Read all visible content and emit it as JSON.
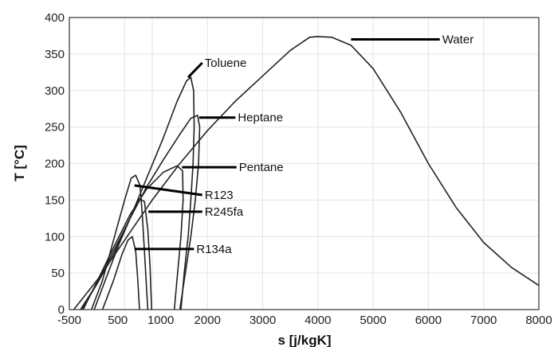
{
  "chart_data": {
    "type": "line",
    "title": "",
    "xlabel": "s [j/kgK]",
    "ylabel": "T [°C]",
    "xlim": [
      -500,
      8000
    ],
    "ylim": [
      0,
      400
    ],
    "xticks": [
      "-500",
      "500",
      "1000",
      "2000",
      "3000",
      "4000",
      "5000",
      "6000",
      "7000",
      "8000"
    ],
    "yticks": [
      "0",
      "50",
      "100",
      "150",
      "200",
      "250",
      "300",
      "350",
      "400"
    ],
    "grid": true,
    "series": [
      {
        "name": "Water",
        "label_at": [
          6250,
          370
        ],
        "tip": [
          4600,
          370
        ],
        "points": [
          [
            -420,
            0
          ],
          [
            0,
            40
          ],
          [
            500,
            95
          ],
          [
            1000,
            150
          ],
          [
            1500,
            200
          ],
          [
            2000,
            245
          ],
          [
            2500,
            285
          ],
          [
            3000,
            320
          ],
          [
            3500,
            355
          ],
          [
            3850,
            373
          ],
          [
            4000,
            374
          ],
          [
            4250,
            373
          ],
          [
            4600,
            362
          ],
          [
            5000,
            330
          ],
          [
            5500,
            270
          ],
          [
            6000,
            200
          ],
          [
            6500,
            140
          ],
          [
            7000,
            92
          ],
          [
            7500,
            58
          ],
          [
            8000,
            33
          ]
        ]
      },
      {
        "name": "Toluene",
        "label_at": [
          1950,
          338
        ],
        "tip": [
          1650,
          318
        ],
        "points": [
          [
            -300,
            0
          ],
          [
            0,
            35
          ],
          [
            300,
            75
          ],
          [
            600,
            125
          ],
          [
            900,
            180
          ],
          [
            1200,
            235
          ],
          [
            1450,
            285
          ],
          [
            1620,
            313
          ],
          [
            1700,
            318
          ],
          [
            1750,
            300
          ],
          [
            1760,
            250
          ],
          [
            1740,
            200
          ],
          [
            1700,
            150
          ],
          [
            1650,
            100
          ],
          [
            1580,
            50
          ],
          [
            1520,
            0
          ]
        ]
      },
      {
        "name": "Heptane",
        "label_at": [
          2550,
          263
        ],
        "tip": [
          1850,
          263
        ],
        "points": [
          [
            -280,
            0
          ],
          [
            0,
            35
          ],
          [
            300,
            80
          ],
          [
            600,
            125
          ],
          [
            900,
            168
          ],
          [
            1200,
            205
          ],
          [
            1500,
            240
          ],
          [
            1700,
            262
          ],
          [
            1820,
            266
          ],
          [
            1860,
            250
          ],
          [
            1840,
            200
          ],
          [
            1780,
            150
          ],
          [
            1700,
            100
          ],
          [
            1600,
            50
          ],
          [
            1500,
            0
          ]
        ]
      },
      {
        "name": "Pentane",
        "label_at": [
          2570,
          195
        ],
        "tip": [
          1540,
          195
        ],
        "points": [
          [
            -250,
            0
          ],
          [
            0,
            38
          ],
          [
            300,
            85
          ],
          [
            600,
            130
          ],
          [
            900,
            165
          ],
          [
            1200,
            188
          ],
          [
            1450,
            197
          ],
          [
            1550,
            190
          ],
          [
            1560,
            150
          ],
          [
            1520,
            100
          ],
          [
            1460,
            50
          ],
          [
            1400,
            0
          ]
        ]
      },
      {
        "name": "R123",
        "label_at": [
          1950,
          157
        ],
        "tip": [
          680,
          170
        ],
        "points": [
          [
            -100,
            0
          ],
          [
            100,
            40
          ],
          [
            300,
            95
          ],
          [
            500,
            150
          ],
          [
            620,
            180
          ],
          [
            700,
            184
          ],
          [
            780,
            170
          ],
          [
            820,
            130
          ],
          [
            860,
            80
          ],
          [
            890,
            40
          ],
          [
            920,
            0
          ]
        ]
      },
      {
        "name": "R245fa",
        "label_at": [
          1950,
          134
        ],
        "tip": [
          930,
          134
        ],
        "points": [
          [
            -50,
            0
          ],
          [
            150,
            40
          ],
          [
            400,
            90
          ],
          [
            600,
            125
          ],
          [
            760,
            152
          ],
          [
            860,
            148
          ],
          [
            920,
            110
          ],
          [
            960,
            60
          ],
          [
            990,
            0
          ]
        ]
      },
      {
        "name": "R134a",
        "label_at": [
          1800,
          83
        ],
        "tip": [
          680,
          83
        ],
        "points": [
          [
            100,
            0
          ],
          [
            300,
            40
          ],
          [
            450,
            75
          ],
          [
            560,
            95
          ],
          [
            640,
            100
          ],
          [
            700,
            80
          ],
          [
            740,
            40
          ],
          [
            770,
            0
          ]
        ]
      }
    ]
  }
}
